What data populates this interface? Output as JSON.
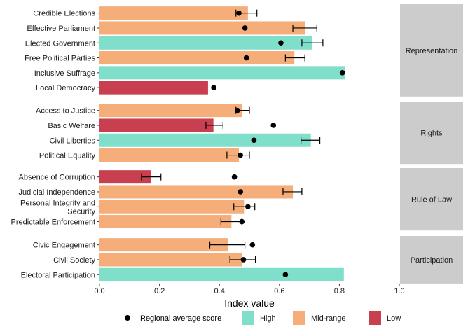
{
  "chart_data": {
    "type": "bar",
    "orientation": "horizontal",
    "xlabel": "Index value",
    "xlim": [
      0,
      1
    ],
    "xticks": [
      "0.0",
      "0.2",
      "0.4",
      "0.6",
      "0.8",
      "1.0"
    ],
    "grid": false,
    "legend_position": "bottom",
    "legend": {
      "point_label": "Regional average score",
      "items": [
        {
          "key": "high",
          "label": "High",
          "color": "#7fdfca"
        },
        {
          "key": "mid",
          "label": "Mid-range",
          "color": "#f5ad7a"
        },
        {
          "key": "low",
          "label": "Low",
          "color": "#c8404f"
        }
      ]
    },
    "facets": [
      {
        "name": "Representation",
        "rows": [
          {
            "label": "Credible Elections",
            "value": 0.495,
            "level": "mid",
            "err": [
              0.455,
              0.525
            ],
            "avg": 0.465
          },
          {
            "label": "Effective Parliament",
            "value": 0.685,
            "level": "mid",
            "err": [
              0.645,
              0.725
            ],
            "avg": 0.485
          },
          {
            "label": "Elected Government",
            "value": 0.71,
            "level": "high",
            "err": [
              0.675,
              0.745
            ],
            "avg": 0.605
          },
          {
            "label": "Free Political Parties",
            "value": 0.65,
            "level": "mid",
            "err": [
              0.62,
              0.685
            ],
            "avg": 0.49
          },
          {
            "label": "Inclusive Suffrage",
            "value": 0.82,
            "level": "high",
            "err": null,
            "avg": 0.81
          },
          {
            "label": "Local Democracy",
            "value": 0.362,
            "level": "low",
            "err": null,
            "avg": 0.381
          }
        ]
      },
      {
        "name": "Rights",
        "rows": [
          {
            "label": "Access to Justice",
            "value": 0.475,
            "level": "mid",
            "err": [
              0.455,
              0.5
            ],
            "avg": 0.46
          },
          {
            "label": "Basic Welfare",
            "value": 0.38,
            "level": "low",
            "err": [
              0.355,
              0.412
            ],
            "avg": 0.58
          },
          {
            "label": "Civil Liberties",
            "value": 0.705,
            "level": "high",
            "err": [
              0.672,
              0.735
            ],
            "avg": 0.515
          },
          {
            "label": "Political Equality",
            "value": 0.465,
            "level": "mid",
            "err": [
              0.425,
              0.5
            ],
            "avg": 0.47
          }
        ]
      },
      {
        "name": "Rule of Law",
        "rows": [
          {
            "label": "Absence of Corruption",
            "value": 0.172,
            "level": "low",
            "err": [
              0.14,
              0.205
            ],
            "avg": 0.45
          },
          {
            "label": "Judicial Independence",
            "value": 0.645,
            "level": "mid",
            "err": [
              0.612,
              0.675
            ],
            "avg": 0.47
          },
          {
            "label": "Personal Integrity and Security",
            "value": 0.482,
            "level": "mid",
            "err": [
              0.448,
              0.518
            ],
            "avg": 0.495
          },
          {
            "label": "Predictable Enforcement",
            "value": 0.44,
            "level": "mid",
            "err": [
              0.405,
              0.475
            ],
            "avg": 0.475
          }
        ]
      },
      {
        "name": "Participation",
        "rows": [
          {
            "label": "Civic Engagement",
            "value": 0.43,
            "level": "mid",
            "err": [
              0.368,
              0.485
            ],
            "avg": 0.51
          },
          {
            "label": "Civil Society",
            "value": 0.475,
            "level": "mid",
            "err": [
              0.435,
              0.52
            ],
            "avg": 0.48
          },
          {
            "label": "Electoral Participation",
            "value": 0.815,
            "level": "high",
            "err": null,
            "avg": 0.62
          }
        ]
      }
    ]
  }
}
